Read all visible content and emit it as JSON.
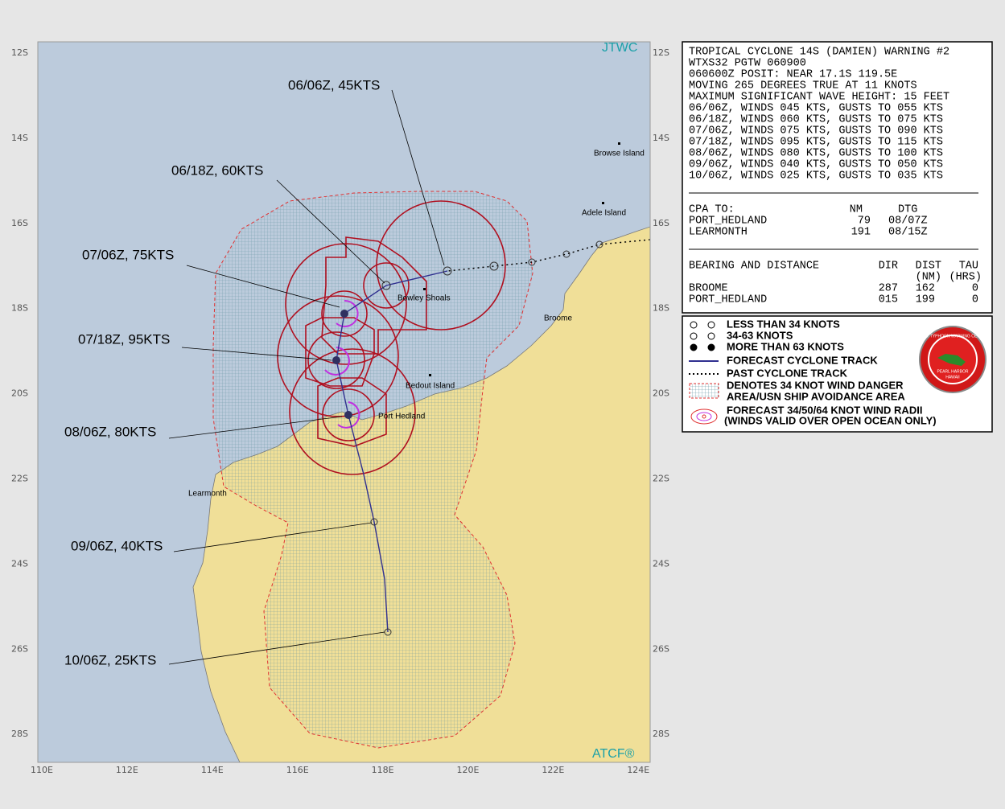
{
  "map": {
    "brand": "JTWC",
    "footer": "ATCF®",
    "lat_labels": [
      "12S",
      "14S",
      "16S",
      "18S",
      "20S",
      "22S",
      "24S",
      "26S",
      "28S"
    ],
    "lon_labels": [
      "110E",
      "112E",
      "114E",
      "116E",
      "118E",
      "120E",
      "122E",
      "124E"
    ],
    "places": [
      "Browse Island",
      "Adele Island",
      "Broome",
      "Bowley Shoals",
      "Bedout Island",
      "Port Hedland",
      "Learmonth"
    ],
    "forecasts": [
      "06/06Z, 45KTS",
      "06/18Z, 60KTS",
      "07/06Z, 75KTS",
      "07/18Z, 95KTS",
      "08/06Z, 80KTS",
      "09/06Z, 40KTS",
      "10/06Z, 25KTS"
    ]
  },
  "warning": {
    "lines": [
      "TROPICAL CYCLONE 14S (DAMIEN) WARNING #2",
      "WTXS32 PGTW 060900",
      "060600Z POSIT: NEAR 17.1S 119.5E",
      "MOVING 265 DEGREES TRUE AT 11 KNOTS",
      "MAXIMUM SIGNIFICANT WAVE HEIGHT: 15 FEET",
      "06/06Z, WINDS 045 KTS, GUSTS TO 055 KTS",
      "06/18Z, WINDS 060 KTS, GUSTS TO 075 KTS",
      "07/06Z, WINDS 075 KTS, GUSTS TO 090 KTS",
      "07/18Z, WINDS 095 KTS, GUSTS TO 115 KTS",
      "08/06Z, WINDS 080 KTS, GUSTS TO 100 KTS",
      "09/06Z, WINDS 040 KTS, GUSTS TO 050 KTS",
      "10/06Z, WINDS 025 KTS, GUSTS TO 035 KTS"
    ],
    "cpa": {
      "title": "CPA TO:",
      "columns": [
        "NM",
        "DTG"
      ],
      "rows": [
        [
          "PORT_HEDLAND",
          79,
          "08/07Z"
        ],
        [
          "LEARMONTH",
          191,
          "08/15Z"
        ]
      ]
    },
    "bearing": {
      "title": "BEARING AND DISTANCE",
      "columns": [
        "DIR",
        "DIST",
        "TAU"
      ],
      "units": [
        "(NM)",
        "(HRS)"
      ],
      "rows": [
        [
          "BROOME",
          287,
          162,
          0
        ],
        [
          "PORT_HEDLAND",
          "015",
          199,
          0
        ]
      ]
    }
  },
  "legend": {
    "items": [
      "LESS THAN 34 KNOTS",
      "34-63 KNOTS",
      "MORE THAN 63 KNOTS",
      "FORECAST CYCLONE TRACK",
      "PAST CYCLONE TRACK",
      "DENOTES 34 KNOT WIND DANGER",
      "AREA/USN SHIP AVOIDANCE AREA",
      "FORECAST 34/50/64 KNOT WIND RADII",
      "(WINDS VALID OVER OPEN OCEAN ONLY)"
    ],
    "logo": [
      "JOINT TYPHOON WARNING CENTER",
      "PEARL HARBOR",
      "HAWAII"
    ]
  }
}
